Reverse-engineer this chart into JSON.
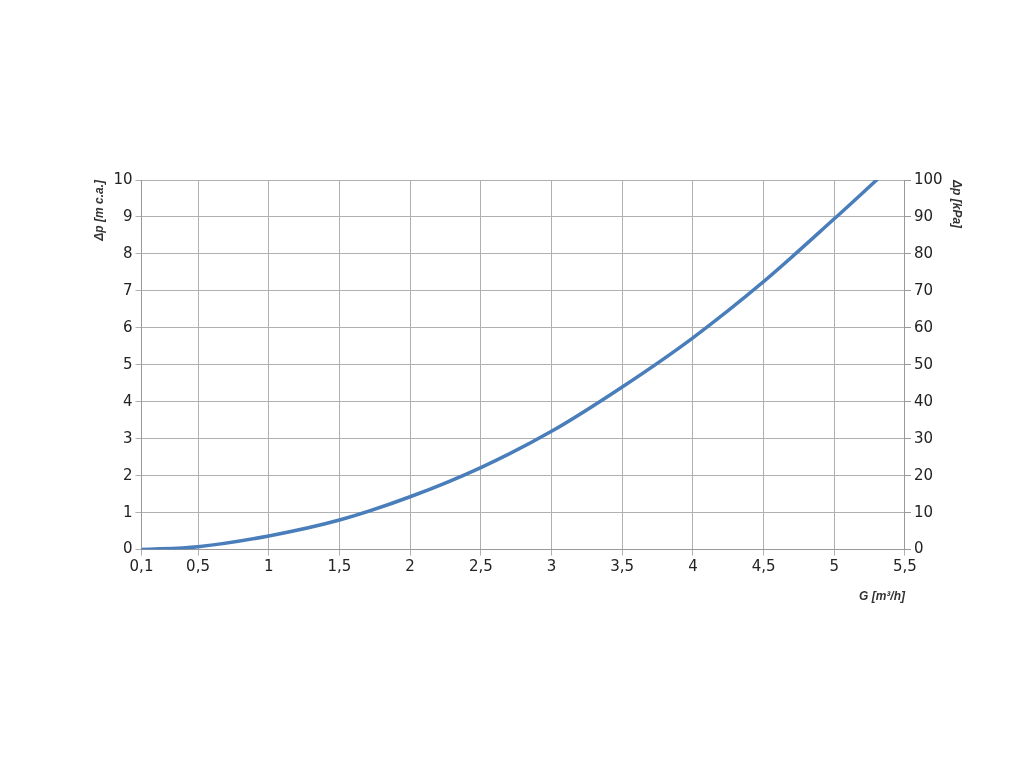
{
  "chart_data": {
    "type": "line",
    "xlabel": "G [m³/h]",
    "ylabel": "Δp [m c.a.]",
    "y2label": "Δp [kPa]",
    "x": [
      0.1,
      0.5,
      1,
      1.5,
      2,
      2.5,
      3,
      3.5,
      4,
      4.5,
      5,
      5.3
    ],
    "series": [
      {
        "color": "#4a7ebb",
        "values": [
          0,
          0.08,
          0.37,
          0.8,
          1.43,
          2.22,
          3.2,
          4.4,
          5.73,
          7.25,
          8.95,
          10
        ]
      }
    ],
    "xlim": [
      0.1,
      5.5
    ],
    "xticks": [
      {
        "value": 0.1,
        "label": "0,1"
      },
      {
        "value": 0.5,
        "label": "0,5"
      },
      1,
      {
        "value": 1.5,
        "label": "1,5"
      },
      2,
      {
        "value": 2.5,
        "label": "2,5"
      },
      3,
      {
        "value": 3.5,
        "label": "3,5"
      },
      4,
      {
        "value": 4.5,
        "label": "4,5"
      },
      5,
      {
        "value": 5.5,
        "label": "5,5"
      }
    ],
    "ylim": [
      0,
      10
    ],
    "yticks": [
      0,
      1,
      2,
      3,
      4,
      5,
      6,
      7,
      8,
      9,
      10
    ],
    "y2lim": [
      0,
      100
    ],
    "y2ticks": [
      0,
      10,
      20,
      30,
      40,
      50,
      60,
      70,
      80,
      90,
      100
    ],
    "grid": true,
    "legend": false,
    "marker": "none",
    "line_style": "solid"
  }
}
